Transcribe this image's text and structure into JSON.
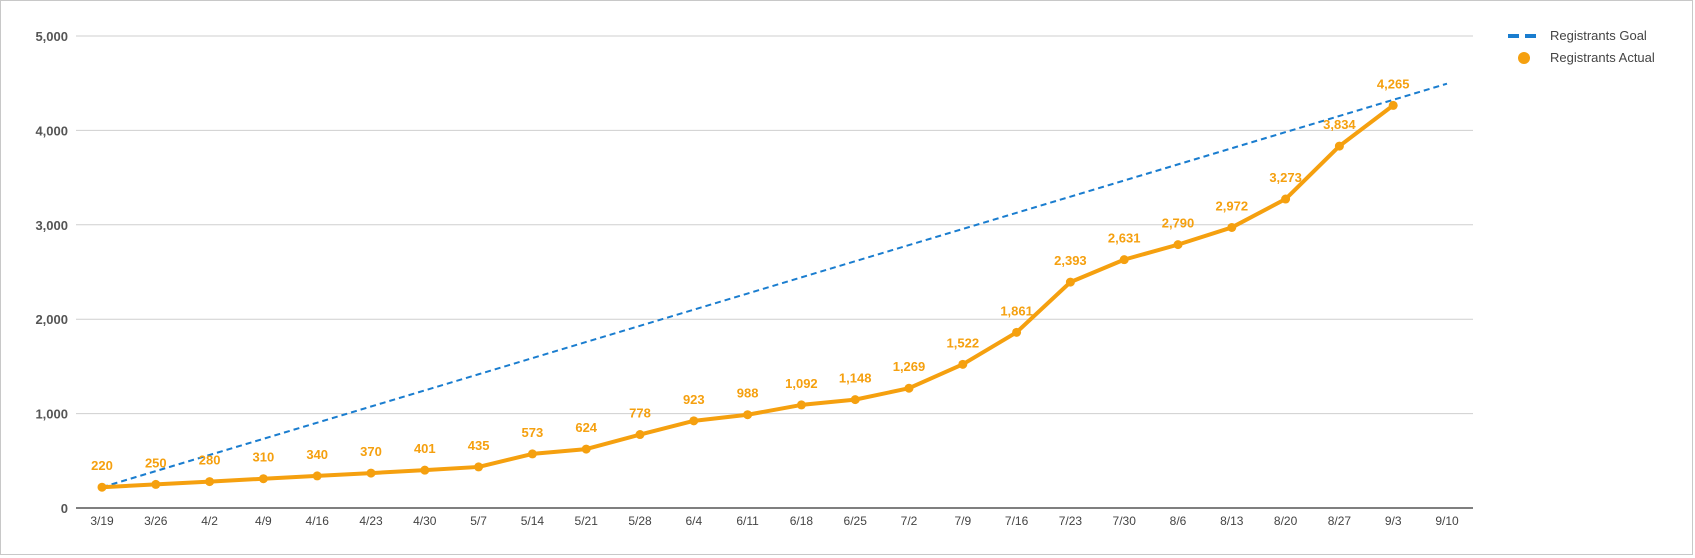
{
  "chart_data": {
    "type": "line",
    "title": "",
    "xlabel": "",
    "ylabel": "",
    "ylim": [
      0,
      5000
    ],
    "yticks": [
      0,
      1000,
      2000,
      3000,
      4000,
      5000
    ],
    "ytick_labels": [
      "0",
      "1,000",
      "2,000",
      "3,000",
      "4,000",
      "5,000"
    ],
    "grid": true,
    "legend_position": "top-right",
    "categories": [
      "3/19",
      "3/26",
      "4/2",
      "4/9",
      "4/16",
      "4/23",
      "4/30",
      "5/7",
      "5/14",
      "5/21",
      "5/28",
      "6/4",
      "6/11",
      "6/18",
      "6/25",
      "7/2",
      "7/9",
      "7/16",
      "7/23",
      "7/30",
      "8/6",
      "8/13",
      "8/20",
      "8/27",
      "9/3",
      "9/10"
    ],
    "series": [
      {
        "name": "Registrants Goal",
        "style": "dashed",
        "color": "#1a7dcf",
        "values": [
          220,
          391,
          562,
          733,
          904,
          1075,
          1246,
          1417,
          1588,
          1759,
          1930,
          2101,
          2272,
          2443,
          2614,
          2785,
          2956,
          3127,
          3298,
          3469,
          3640,
          3811,
          3982,
          4153,
          4324,
          4495
        ]
      },
      {
        "name": "Registrants Actual",
        "style": "solid-markers",
        "color": "#f5a00f",
        "values": [
          220,
          250,
          280,
          310,
          340,
          370,
          401,
          435,
          573,
          624,
          778,
          923,
          988,
          1092,
          1148,
          1269,
          1522,
          1861,
          2393,
          2631,
          2790,
          2972,
          3273,
          3834,
          4265,
          null
        ],
        "labels": [
          "220",
          "250",
          "280",
          "310",
          "340",
          "370",
          "401",
          "435",
          "573",
          "624",
          "778",
          "923",
          "988",
          "1,092",
          "1,148",
          "1,269",
          "1,522",
          "1,861",
          "2,393",
          "2,631",
          "2,790",
          "2,972",
          "3,273",
          "3,834",
          "4,265",
          ""
        ]
      }
    ]
  }
}
